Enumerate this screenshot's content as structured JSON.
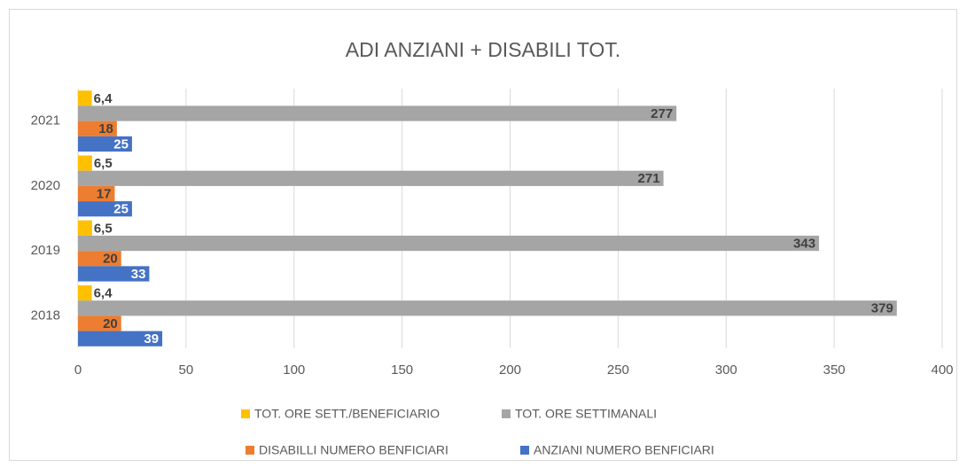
{
  "chart_data": {
    "type": "bar",
    "orientation": "horizontal",
    "title": "ADI ANZIANI + DISABILI TOT.",
    "categories": [
      "2018",
      "2019",
      "2020",
      "2021"
    ],
    "series": [
      {
        "name": "TOT. ORE SETT./BENEFICIARIO",
        "color": "#ffc000",
        "values": [
          6.4,
          6.5,
          6.5,
          6.4
        ],
        "value_labels": [
          "6,4",
          "6,5",
          "6,5",
          "6,4"
        ]
      },
      {
        "name": "TOT. ORE SETTIMANALI",
        "color": "#a5a5a5",
        "values": [
          379,
          343,
          271,
          277
        ]
      },
      {
        "name": "DISABILLI NUMERO BENFICIARI",
        "color": "#ed7d31",
        "values": [
          20,
          20,
          17,
          18
        ]
      },
      {
        "name": "ANZIANI NUMERO BENFICIARI",
        "color": "#4472c4",
        "values": [
          39,
          33,
          25,
          25
        ]
      }
    ],
    "xlim": [
      0,
      400
    ],
    "xticks": [
      0,
      50,
      100,
      150,
      200,
      250,
      300,
      350,
      400
    ],
    "grid": true,
    "legend": "bottom"
  }
}
